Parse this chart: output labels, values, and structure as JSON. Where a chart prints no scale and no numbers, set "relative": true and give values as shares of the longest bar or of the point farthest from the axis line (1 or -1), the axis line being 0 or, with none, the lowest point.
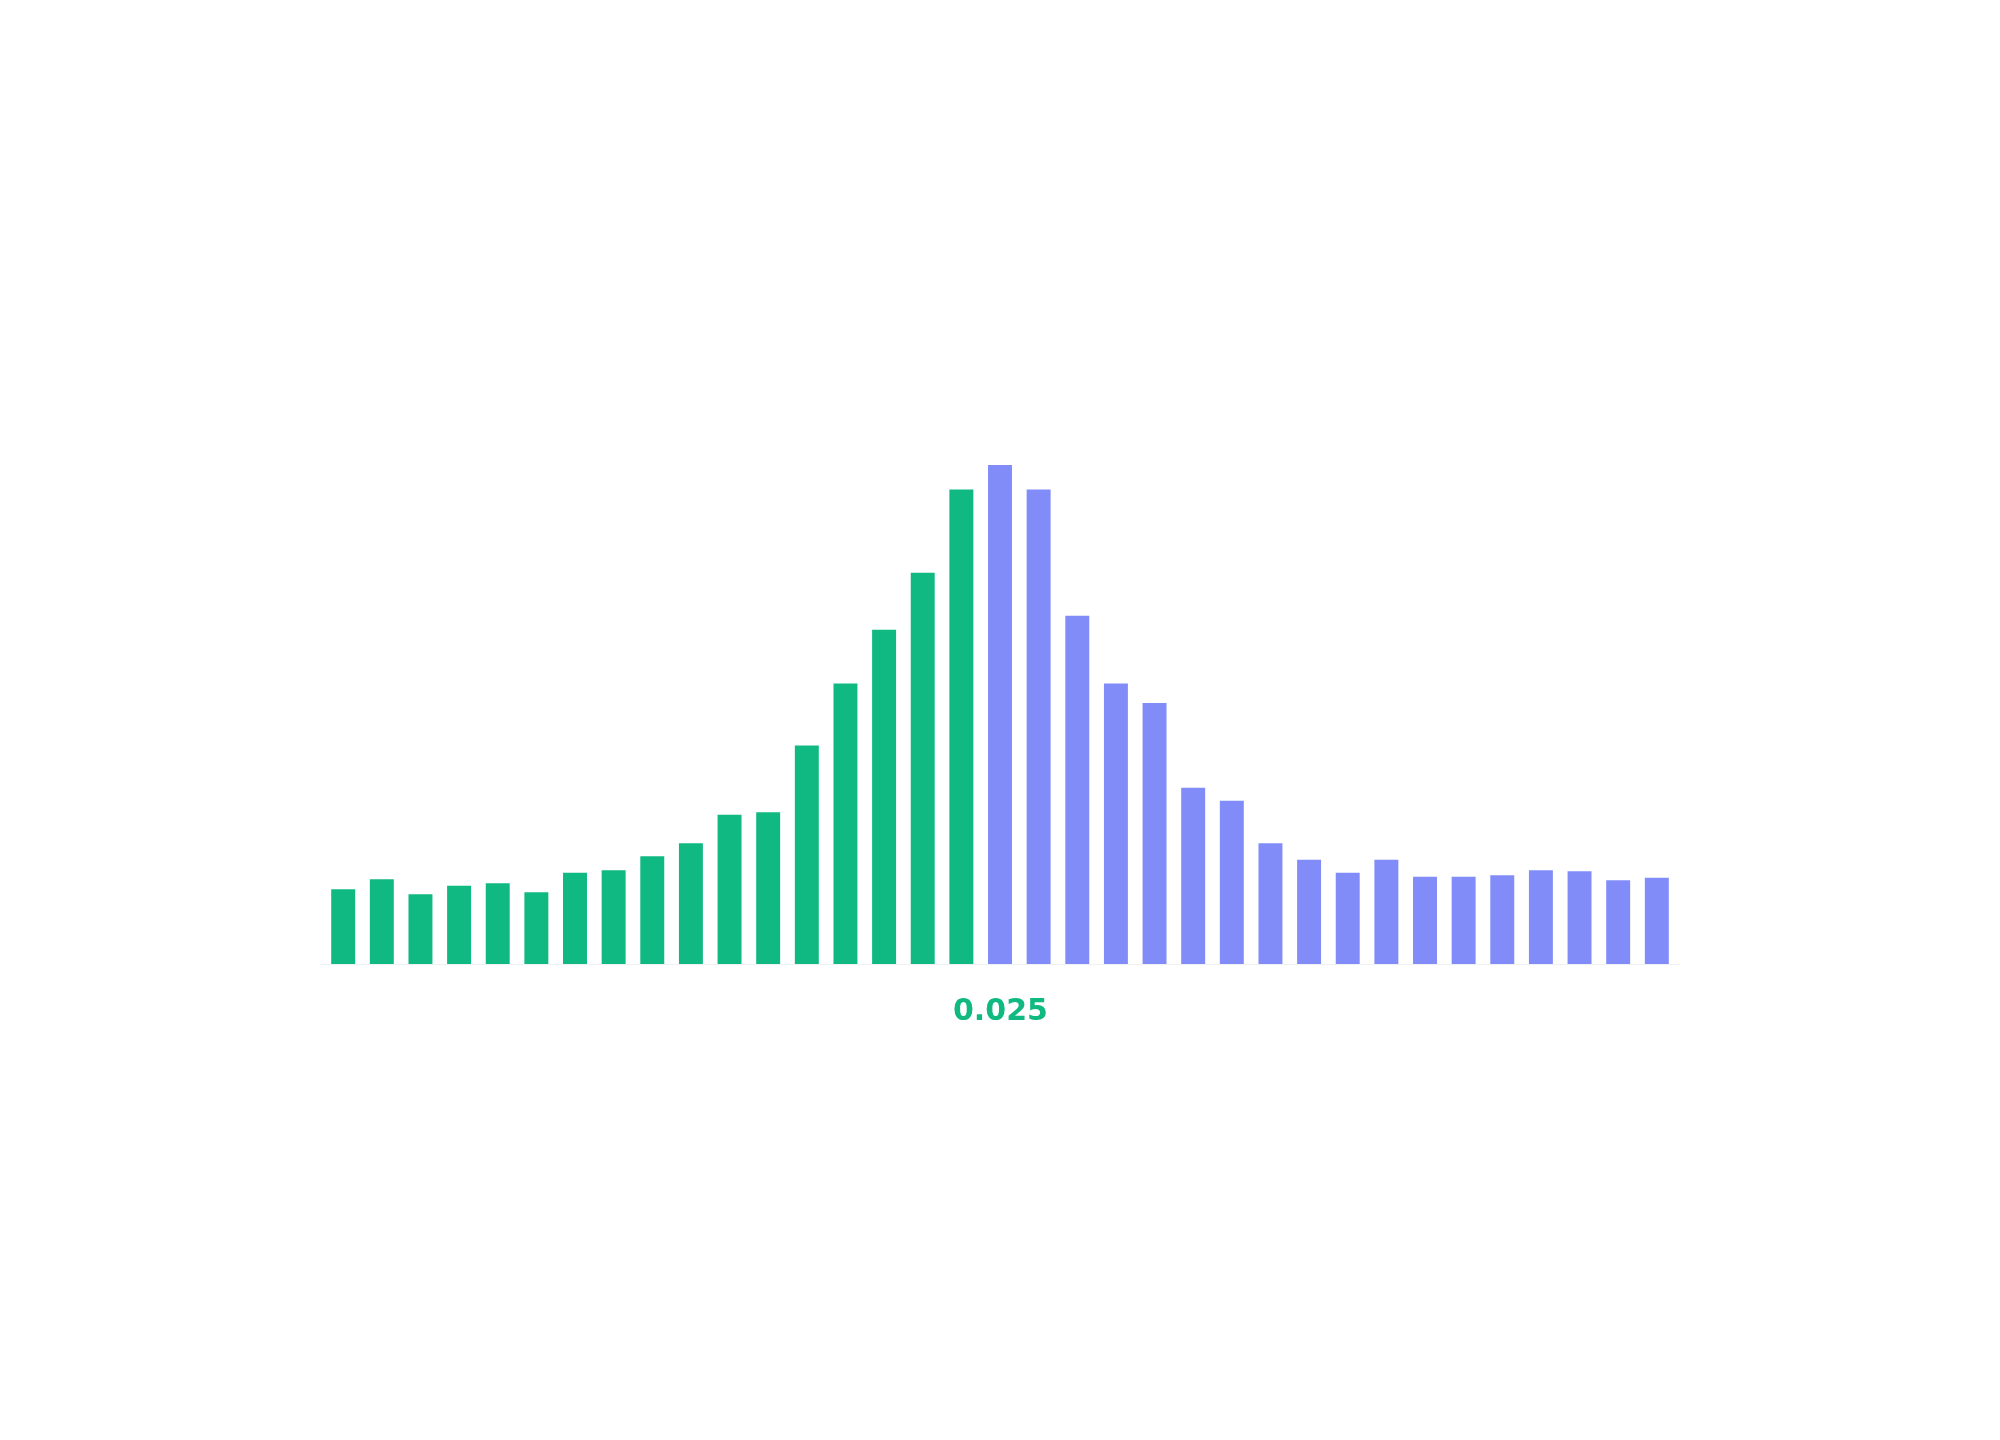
{
  "chart_data": {
    "type": "bar",
    "relative": true,
    "categories": [
      null,
      null,
      null,
      null,
      null,
      null,
      null,
      null,
      null,
      null,
      null,
      null,
      null,
      null,
      null,
      null,
      null,
      null,
      null,
      null,
      null,
      null,
      null,
      null,
      null,
      null,
      null,
      null,
      null,
      null,
      null,
      null,
      null,
      null,
      null
    ],
    "values": [
      0.15,
      0.17,
      0.14,
      0.157,
      0.162,
      0.144,
      0.183,
      0.188,
      0.216,
      0.242,
      0.299,
      0.304,
      0.438,
      0.562,
      0.67,
      0.784,
      0.951,
      1,
      0.951,
      0.698,
      0.562,
      0.523,
      0.353,
      0.327,
      0.242,
      0.209,
      0.183,
      0.209,
      0.175,
      0.175,
      0.178,
      0.188,
      0.186,
      0.168,
      0.173
    ],
    "colors": [
      "#10b981",
      "#10b981",
      "#10b981",
      "#10b981",
      "#10b981",
      "#10b981",
      "#10b981",
      "#10b981",
      "#10b981",
      "#10b981",
      "#10b981",
      "#10b981",
      "#10b981",
      "#10b981",
      "#10b981",
      "#10b981",
      "#10b981",
      "#818cf8",
      "#818cf8",
      "#818cf8",
      "#818cf8",
      "#818cf8",
      "#818cf8",
      "#818cf8",
      "#818cf8",
      "#818cf8",
      "#818cf8",
      "#818cf8",
      "#818cf8",
      "#818cf8",
      "#818cf8",
      "#818cf8",
      "#818cf8",
      "#818cf8",
      "#818cf8"
    ],
    "annotations": [
      "0.025"
    ]
  }
}
